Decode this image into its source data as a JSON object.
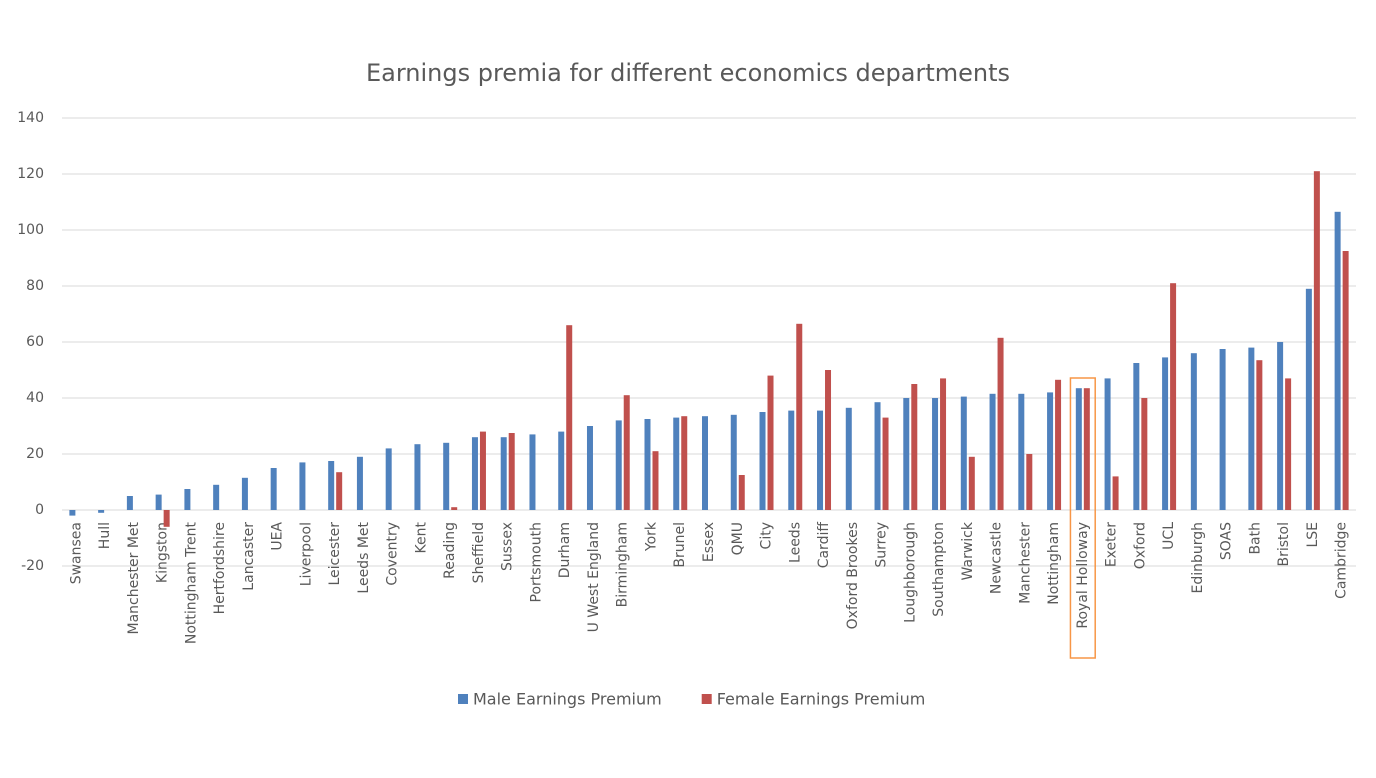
{
  "chart_data": {
    "type": "bar",
    "title": "Earnings premia for different economics departments",
    "categories": [
      "Swansea",
      "Hull",
      "Manchester Met",
      "Kingston",
      "Nottingham Trent",
      "Hertfordshire",
      "Lancaster",
      "UEA",
      "Liverpool",
      "Leicester",
      "Leeds Met",
      "Coventry",
      "Kent",
      "Reading",
      "Sheffield",
      "Sussex",
      "Portsmouth",
      "Durham",
      "U West England",
      "Birmingham",
      "York",
      "Brunel",
      "Essex",
      "QMU",
      "City",
      "Leeds",
      "Cardiff",
      "Oxford Brookes",
      "Surrey",
      "Loughborough",
      "Southampton",
      "Warwick",
      "Newcastle",
      "Manchester",
      "Nottingham",
      "Royal Holloway",
      "Exeter",
      "Oxford",
      "UCL",
      "Edinburgh",
      "SOAS",
      "Bath",
      "Bristol",
      "LSE",
      "Cambridge"
    ],
    "series": [
      {
        "name": "Male Earnings Premium",
        "color": "#4f81bd",
        "values": [
          -2,
          -1,
          5,
          5.5,
          7.5,
          9,
          11.5,
          15,
          17,
          17.5,
          19,
          22,
          23.5,
          24,
          26,
          26,
          27,
          28,
          30,
          32,
          32.5,
          33,
          33.5,
          34,
          35,
          35.5,
          35.5,
          36.5,
          38.5,
          40,
          40,
          40.5,
          41.5,
          41.5,
          42,
          43.5,
          47,
          52.5,
          54.5,
          56,
          57.5,
          58,
          60,
          79,
          106.5
        ]
      },
      {
        "name": "Female Earnings Premium",
        "color": "#c0504d",
        "values": [
          null,
          null,
          null,
          -6,
          null,
          null,
          null,
          null,
          null,
          13.5,
          null,
          null,
          null,
          1,
          28,
          27.5,
          null,
          66,
          null,
          41,
          21,
          33.5,
          null,
          12.5,
          48,
          66.5,
          50,
          null,
          33,
          45,
          47,
          19,
          61.5,
          20,
          46.5,
          43.5,
          12,
          40,
          81,
          null,
          null,
          53.5,
          47,
          121,
          92.5
        ]
      }
    ],
    "ylim": [
      -20,
      140
    ],
    "yticks": [
      -20,
      0,
      20,
      40,
      60,
      80,
      100,
      120,
      140
    ],
    "grid": true,
    "highlight_category": "Royal Holloway",
    "highlight_color": "#f79646",
    "legend": "bottom"
  }
}
